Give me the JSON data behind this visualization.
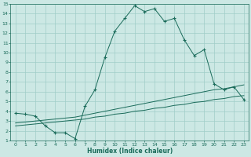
{
  "xlabel": "Humidex (Indice chaleur)",
  "bg_color": "#cce8e4",
  "grid_color": "#a0cdc8",
  "line_color": "#1a6b5a",
  "xlim": [
    -0.5,
    23.5
  ],
  "ylim": [
    1,
    15
  ],
  "xticks": [
    0,
    1,
    2,
    3,
    4,
    5,
    6,
    7,
    8,
    9,
    10,
    11,
    12,
    13,
    14,
    15,
    16,
    17,
    18,
    19,
    20,
    21,
    22,
    23
  ],
  "yticks": [
    1,
    2,
    3,
    4,
    5,
    6,
    7,
    8,
    9,
    10,
    11,
    12,
    13,
    14,
    15
  ],
  "line1_x": [
    0,
    1,
    2,
    3,
    4,
    5,
    6,
    7,
    8,
    9,
    10,
    11,
    12,
    13,
    14,
    15,
    16,
    17,
    18,
    19,
    20,
    21,
    22,
    23
  ],
  "line1_y": [
    3.8,
    3.7,
    3.5,
    2.5,
    1.8,
    1.8,
    1.2,
    4.5,
    6.2,
    9.5,
    12.2,
    13.5,
    14.8,
    14.2,
    14.5,
    13.2,
    13.5,
    11.3,
    9.7,
    10.3,
    6.8,
    6.2,
    6.5,
    5.2
  ],
  "line2_x": [
    0,
    1,
    2,
    3,
    4,
    5,
    6,
    7,
    8,
    9,
    10,
    11,
    12,
    13,
    14,
    15,
    16,
    17,
    18,
    19,
    20,
    21,
    22,
    23
  ],
  "line2_y": [
    2.8,
    2.9,
    3.0,
    3.1,
    3.2,
    3.3,
    3.4,
    3.6,
    3.8,
    4.0,
    4.2,
    4.4,
    4.6,
    4.8,
    5.0,
    5.2,
    5.4,
    5.6,
    5.8,
    6.0,
    6.2,
    6.3,
    6.5,
    6.7
  ],
  "line3_x": [
    0,
    1,
    2,
    3,
    4,
    5,
    6,
    7,
    8,
    9,
    10,
    11,
    12,
    13,
    14,
    15,
    16,
    17,
    18,
    19,
    20,
    21,
    22,
    23
  ],
  "line3_y": [
    2.5,
    2.6,
    2.7,
    2.8,
    2.9,
    3.0,
    3.1,
    3.2,
    3.4,
    3.5,
    3.7,
    3.8,
    4.0,
    4.1,
    4.3,
    4.4,
    4.6,
    4.7,
    4.9,
    5.0,
    5.2,
    5.3,
    5.5,
    5.6
  ]
}
